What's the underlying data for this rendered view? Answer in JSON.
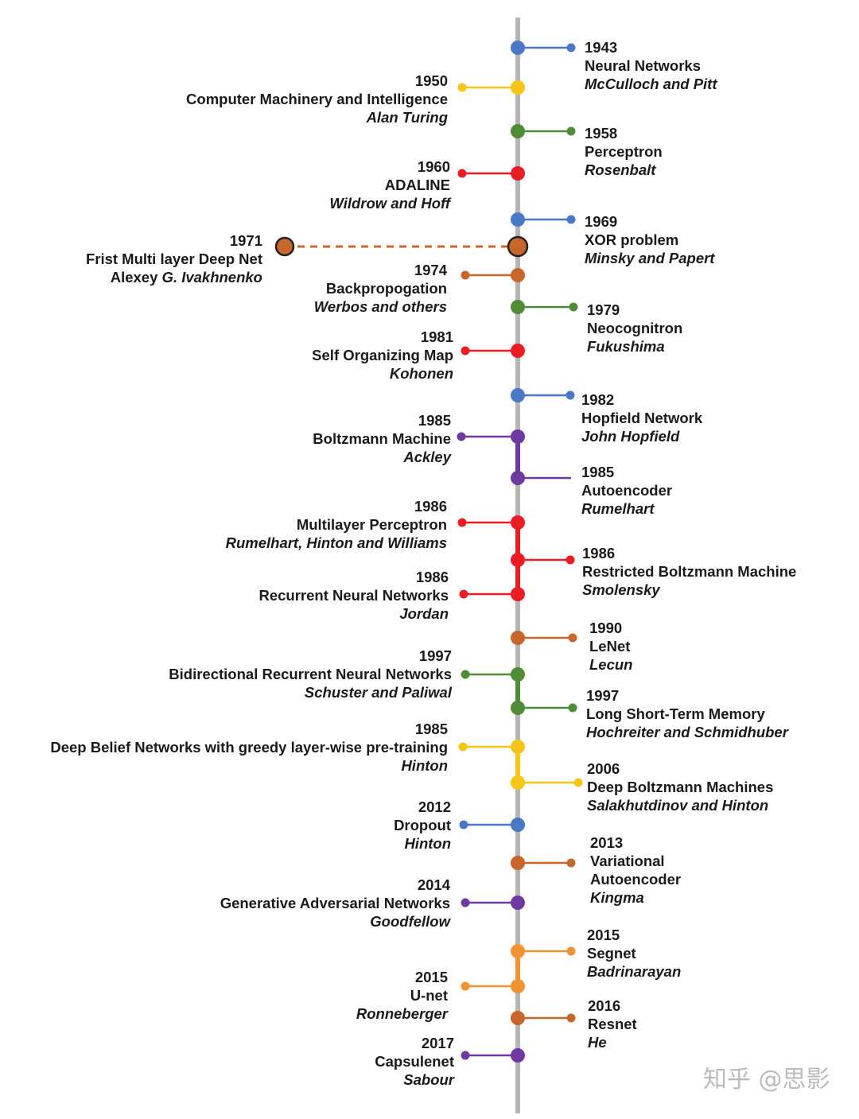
{
  "colors": {
    "axis": "#b5b5b5",
    "blue": "#4a78c6",
    "yellow": "#f5c518",
    "green": "#4f8c37",
    "red": "#ea1c24",
    "orange_brown": "#c8652a",
    "purple": "#6e3aa0",
    "orange": "#f29331"
  },
  "events": [
    {
      "id": "e1943",
      "year": "1943",
      "title": "Neural Networks",
      "author": "McCulloch and Pitt",
      "side": "right",
      "color": "blue"
    },
    {
      "id": "e1950",
      "year": "1950",
      "title": "Computer Machinery and Intelligence",
      "author": "Alan Turing",
      "side": "left",
      "color": "yellow"
    },
    {
      "id": "e1958",
      "year": "1958",
      "title": "Perceptron",
      "author": "Rosenbalt",
      "side": "right",
      "color": "green"
    },
    {
      "id": "e1960",
      "year": "1960",
      "title": "ADALINE",
      "author": "Wildrow and Hoff",
      "side": "left",
      "color": "red"
    },
    {
      "id": "e1969",
      "year": "1969",
      "title": "XOR problem",
      "author": "Minsky and Papert",
      "side": "right",
      "color": "blue"
    },
    {
      "id": "e1971",
      "year": "1971",
      "title": "Frist Multi layer Deep Net",
      "author_plain": "Alexey ",
      "author_italic": "G. Ivakhnenko",
      "side": "left",
      "color": "orange_brown"
    },
    {
      "id": "e1974",
      "year": "1974",
      "title": "Backpropogation",
      "author": "Werbos and others",
      "side": "left",
      "color": "orange_brown"
    },
    {
      "id": "e1979",
      "year": "1979",
      "title": "Neocognitron",
      "author": "Fukushima",
      "side": "right",
      "color": "green"
    },
    {
      "id": "e1981",
      "year": "1981",
      "title": "Self Organizing Map",
      "author": "Kohonen",
      "side": "left",
      "color": "red"
    },
    {
      "id": "e1982",
      "year": "1982",
      "title": "Hopfield Network",
      "author": "John Hopfield",
      "side": "right",
      "color": "blue"
    },
    {
      "id": "e1985a",
      "year": "1985",
      "title": "Boltzmann Machine",
      "author": "Ackley",
      "side": "left",
      "color": "purple"
    },
    {
      "id": "e1985b",
      "year": "1985",
      "title": "Autoencoder",
      "author": "Rumelhart",
      "side": "right",
      "color": "purple"
    },
    {
      "id": "e1986a",
      "year": "1986",
      "title": "Multilayer Perceptron",
      "author": "Rumelhart, Hinton and Williams",
      "side": "left",
      "color": "red"
    },
    {
      "id": "e1986b",
      "year": "1986",
      "title": "Restricted Boltzmann Machine",
      "author": "Smolensky",
      "side": "right",
      "color": "red"
    },
    {
      "id": "e1986c",
      "year": "1986",
      "title": "Recurrent Neural Networks",
      "author": "Jordan",
      "side": "left",
      "color": "red"
    },
    {
      "id": "e1990",
      "year": "1990",
      "title": "LeNet",
      "author": "Lecun",
      "side": "right",
      "color": "orange_brown"
    },
    {
      "id": "e1997a",
      "year": "1997",
      "title": "Bidirectional Recurrent Neural Networks",
      "author": "Schuster and Paliwal",
      "side": "left",
      "color": "green"
    },
    {
      "id": "e1997b",
      "year": "1997",
      "title": "Long Short-Term Memory",
      "author": "Hochreiter and Schmidhuber",
      "side": "right",
      "color": "green"
    },
    {
      "id": "e1985c",
      "year": "1985",
      "title": "Deep Belief Networks with greedy layer-wise pre-training",
      "author": "Hinton",
      "side": "left",
      "color": "yellow"
    },
    {
      "id": "e2006",
      "year": "2006",
      "title": "Deep Boltzmann Machines",
      "author": "Salakhutdinov and Hinton",
      "side": "right",
      "color": "yellow"
    },
    {
      "id": "e2012",
      "year": "2012",
      "title": "Dropout",
      "author": "Hinton",
      "side": "left",
      "color": "blue"
    },
    {
      "id": "e2013",
      "year": "2013",
      "title": "Variational",
      "title2": "Autoencoder",
      "author": "Kingma",
      "side": "right",
      "color": "orange_brown"
    },
    {
      "id": "e2014",
      "year": "2014",
      "title": "Generative Adversarial Networks",
      "author": "Goodfellow",
      "side": "left",
      "color": "purple"
    },
    {
      "id": "e2015a",
      "year": "2015",
      "title": "Segnet",
      "author": "Badrinarayan",
      "side": "right",
      "color": "orange"
    },
    {
      "id": "e2015b",
      "year": "2015",
      "title": "U-net",
      "author": "Ronneberger",
      "side": "left",
      "color": "orange"
    },
    {
      "id": "e2016",
      "year": "2016",
      "title": "Resnet",
      "author": "He",
      "side": "right",
      "color": "orange_brown"
    },
    {
      "id": "e2017",
      "year": "2017",
      "title": "Capsulenet",
      "author": "Sabour",
      "side": "left",
      "color": "purple"
    }
  ],
  "watermark": "知乎 @思影"
}
